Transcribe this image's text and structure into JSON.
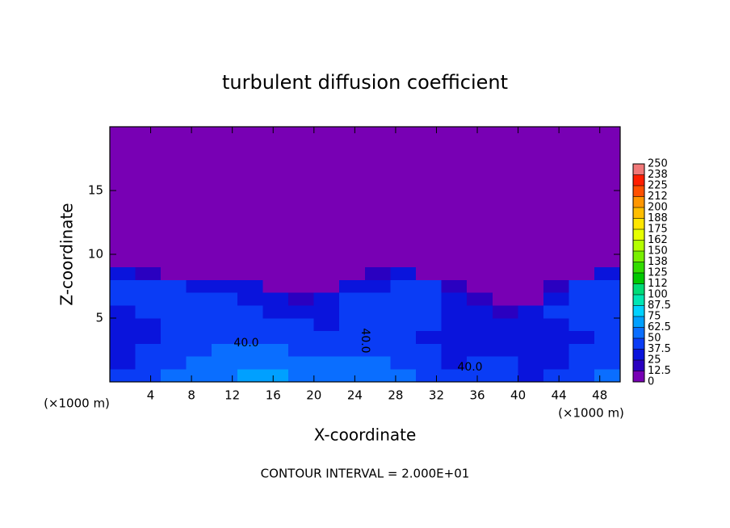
{
  "chart_data": {
    "type": "heatmap",
    "title": "turbulent diffusion coefficient",
    "x_label": "X-coordinate",
    "y_label": "Z-coordinate",
    "x_unit": "(×1000 m)",
    "footer": "CONTOUR INTERVAL = 2.000E+01",
    "contour_labels": [
      "40.0",
      "40.0",
      "40.0"
    ],
    "xlim": [
      0,
      50
    ],
    "ylim": [
      0,
      20
    ],
    "xticks": [
      4,
      8,
      12,
      16,
      20,
      24,
      28,
      32,
      36,
      40,
      44,
      48
    ],
    "yticks": [
      5,
      10,
      15
    ],
    "x_edges": [
      0,
      2.5,
      5,
      7.5,
      10,
      12.5,
      15,
      17.5,
      20,
      22.5,
      25,
      27.5,
      30,
      32.5,
      35,
      37.5,
      40,
      42.5,
      45,
      47.5,
      50
    ],
    "y_edges": [
      0,
      1,
      2,
      3,
      4,
      5,
      6,
      7,
      8,
      9,
      20
    ],
    "z": [
      [
        40,
        45,
        50,
        55,
        62,
        65,
        65,
        62,
        60,
        55,
        58,
        50,
        45,
        40,
        40,
        45,
        35,
        40,
        45,
        50
      ],
      [
        35,
        40,
        45,
        50,
        55,
        58,
        55,
        55,
        50,
        50,
        50,
        45,
        40,
        35,
        38,
        40,
        30,
        35,
        40,
        45
      ],
      [
        30,
        38,
        42,
        48,
        50,
        50,
        50,
        48,
        45,
        45,
        48,
        42,
        38,
        30,
        35,
        35,
        25,
        30,
        38,
        42
      ],
      [
        30,
        35,
        40,
        42,
        45,
        45,
        45,
        42,
        40,
        38,
        45,
        40,
        35,
        30,
        30,
        30,
        25,
        30,
        35,
        40
      ],
      [
        30,
        35,
        38,
        40,
        42,
        42,
        40,
        38,
        35,
        38,
        45,
        40,
        38,
        35,
        30,
        28,
        30,
        35,
        40,
        42
      ],
      [
        35,
        38,
        40,
        40,
        40,
        38,
        35,
        30,
        35,
        40,
        42,
        40,
        40,
        35,
        30,
        20,
        25,
        40,
        45,
        45
      ],
      [
        40,
        42,
        40,
        38,
        38,
        35,
        30,
        20,
        30,
        38,
        40,
        40,
        42,
        30,
        15,
        5,
        5,
        35,
        45,
        45
      ],
      [
        42,
        40,
        38,
        35,
        30,
        25,
        10,
        5,
        5,
        30,
        35,
        40,
        38,
        20,
        5,
        0,
        0,
        20,
        40,
        42
      ],
      [
        30,
        20,
        10,
        5,
        0,
        0,
        0,
        0,
        0,
        0,
        15,
        25,
        10,
        0,
        0,
        0,
        0,
        0,
        10,
        25
      ],
      [
        0,
        0,
        0,
        0,
        0,
        0,
        0,
        0,
        0,
        0,
        0,
        0,
        0,
        0,
        0,
        0,
        0,
        0,
        0,
        0
      ]
    ],
    "colorbar": {
      "levels": [
        0,
        12.5,
        25,
        37.5,
        50,
        62.5,
        75,
        87.5,
        100,
        {
          "value": 112.5,
          "label": "112"
        },
        125,
        {
          "value": 137.5,
          "label": "138"
        },
        150,
        {
          "value": 162.5,
          "label": "162"
        },
        175,
        {
          "value": 187.5,
          "label": "188"
        },
        200,
        {
          "value": 212.5,
          "label": "212"
        },
        225,
        {
          "value": 237.5,
          "label": "238"
        },
        250
      ],
      "colors": [
        "#7800b4",
        "#2a00c0",
        "#0a14dc",
        "#0a3cf5",
        "#0a6eff",
        "#00a0ff",
        "#00d2ff",
        "#00e6b4",
        "#00dc78",
        "#00c800",
        "#32dc00",
        "#78f000",
        "#b4ff00",
        "#e6ff00",
        "#ffe600",
        "#ffbe00",
        "#ff9600",
        "#ff5000",
        "#ff1e00",
        "#f07878"
      ]
    }
  }
}
